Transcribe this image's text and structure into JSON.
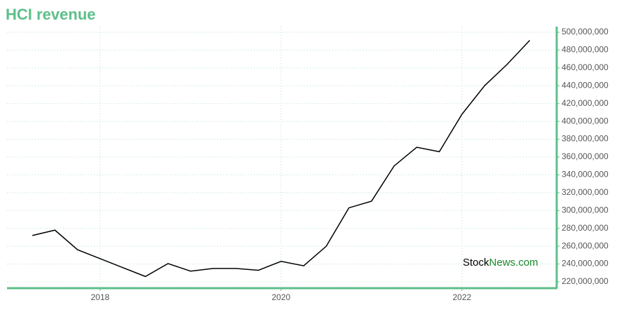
{
  "chart_data": {
    "type": "line",
    "title": "HCI revenue",
    "x": [
      2017.25,
      2017.5,
      2017.75,
      2018,
      2018.25,
      2018.5,
      2018.75,
      2019,
      2019.25,
      2019.5,
      2019.75,
      2020,
      2020.25,
      2020.5,
      2020.75,
      2021,
      2021.25,
      2021.5,
      2021.75,
      2022,
      2022.25,
      2022.5,
      2022.75
    ],
    "series": [
      {
        "color": "#000000",
        "values": [
          272000000,
          278000000,
          256000000,
          246000000,
          236000000,
          226000000,
          240500000,
          232000000,
          235000000,
          235000000,
          233000000,
          243000000,
          238000000,
          260000000,
          303000000,
          310500000,
          350000000,
          371000000,
          366000000,
          408000000,
          440000000,
          464000000,
          491000000
        ]
      }
    ],
    "xlim": [
      2016.97,
      2023.04
    ],
    "xticks": [
      2018,
      2020,
      2022
    ],
    "ylim": [
      213700000,
      506300000
    ],
    "yticks": [
      {
        "value": 220000000,
        "label": "220,000,000"
      },
      {
        "value": 240000000,
        "label": "240,000,000"
      },
      {
        "value": 260000000,
        "label": "260,000,000"
      },
      {
        "value": 280000000,
        "label": "280,000,000"
      },
      {
        "value": 300000000,
        "label": "300,000,000"
      },
      {
        "value": 320000000,
        "label": "320,000,000"
      },
      {
        "value": 340000000,
        "label": "340,000,000"
      },
      {
        "value": 360000000,
        "label": "360,000,000"
      },
      {
        "value": 380000000,
        "label": "380,000,000"
      },
      {
        "value": 400000000,
        "label": "400,000,000"
      },
      {
        "value": 420000000,
        "label": "420,000,000"
      },
      {
        "value": 440000000,
        "label": "440,000,000"
      },
      {
        "value": 460000000,
        "label": "460,000,000"
      },
      {
        "value": 480000000,
        "label": "480,000,000"
      },
      {
        "value": 500000000,
        "label": "500,000,000"
      }
    ],
    "grid": true,
    "axis_color": "#5dbf8a",
    "watermark": [
      "Stock",
      "News.com"
    ]
  }
}
